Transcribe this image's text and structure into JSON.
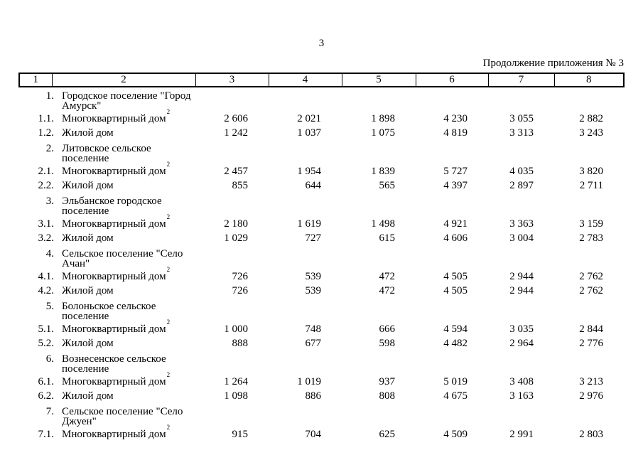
{
  "page": {
    "page_number": "3",
    "continuation_note": "Продолжение приложения № 3"
  },
  "table": {
    "header_columns": [
      "1",
      "2",
      "3",
      "4",
      "5",
      "6",
      "7",
      "8"
    ],
    "rows": [
      {
        "type": "section",
        "num": "1.",
        "name_lines": [
          "Городское поселение \"Город",
          "Амурск\""
        ]
      },
      {
        "type": "data",
        "num": "1.1.",
        "name": "Многоквартирный дом",
        "sup": "2",
        "values": [
          "2 606",
          "2 021",
          "1 898",
          "4 230",
          "3 055",
          "2 882"
        ]
      },
      {
        "type": "data",
        "num": "1.2.",
        "name": "Жилой дом",
        "values": [
          "1 242",
          "1 037",
          "1 075",
          "4 819",
          "3 313",
          "3 243"
        ]
      },
      {
        "type": "section",
        "num": "2.",
        "name_lines": [
          "Литовское сельское",
          "поселение"
        ]
      },
      {
        "type": "data",
        "num": "2.1.",
        "name": "Многоквартирный дом",
        "sup": "2",
        "values": [
          "2 457",
          "1 954",
          "1 839",
          "5 727",
          "4 035",
          "3 820"
        ]
      },
      {
        "type": "data",
        "num": "2.2.",
        "name": "Жилой дом",
        "values": [
          "855",
          "644",
          "565",
          "4 397",
          "2 897",
          "2 711"
        ]
      },
      {
        "type": "section",
        "num": "3.",
        "name_lines": [
          "Эльбанское городское",
          "поселение"
        ]
      },
      {
        "type": "data",
        "num": "3.1.",
        "name": "Многоквартирный дом",
        "sup": "2",
        "values": [
          "2 180",
          "1 619",
          "1 498",
          "4 921",
          "3 363",
          "3 159"
        ]
      },
      {
        "type": "data",
        "num": "3.2.",
        "name": "Жилой дом",
        "values": [
          "1 029",
          "727",
          "615",
          "4 606",
          "3 004",
          "2 783"
        ]
      },
      {
        "type": "section",
        "num": "4.",
        "name_lines": [
          "Сельское поселение \"Село",
          "Ачан\""
        ]
      },
      {
        "type": "data",
        "num": "4.1.",
        "name": "Многоквартирный дом",
        "sup": "2",
        "values": [
          "726",
          "539",
          "472",
          "4 505",
          "2 944",
          "2 762"
        ]
      },
      {
        "type": "data",
        "num": "4.2.",
        "name": "Жилой дом",
        "values": [
          "726",
          "539",
          "472",
          "4 505",
          "2 944",
          "2 762"
        ]
      },
      {
        "type": "section",
        "num": "5.",
        "name_lines": [
          "Болоньское сельское",
          "поселение"
        ]
      },
      {
        "type": "data",
        "num": "5.1.",
        "name": "Многоквартирный дом",
        "sup": "2",
        "values": [
          "1 000",
          "748",
          "666",
          "4 594",
          "3 035",
          "2 844"
        ]
      },
      {
        "type": "data",
        "num": "5.2.",
        "name": "Жилой дом",
        "values": [
          "888",
          "677",
          "598",
          "4 482",
          "2 964",
          "2 776"
        ]
      },
      {
        "type": "section",
        "num": "6.",
        "name_lines": [
          "Вознесенское сельское",
          "поселение"
        ]
      },
      {
        "type": "data",
        "num": "6.1.",
        "name": "Многоквартирный дом",
        "sup": "2",
        "values": [
          "1 264",
          "1 019",
          "937",
          "5 019",
          "3 408",
          "3 213"
        ]
      },
      {
        "type": "data",
        "num": "6.2.",
        "name": "Жилой дом",
        "values": [
          "1 098",
          "886",
          "808",
          "4 675",
          "3 163",
          "2 976"
        ]
      },
      {
        "type": "section",
        "num": "7.",
        "name_lines": [
          "Сельское поселение \"Село",
          "Джуен\""
        ]
      },
      {
        "type": "data",
        "num": "7.1.",
        "name": "Многоквартирный дом",
        "sup": "2",
        "values": [
          "915",
          "704",
          "625",
          "4 509",
          "2 991",
          "2 803"
        ]
      }
    ]
  }
}
